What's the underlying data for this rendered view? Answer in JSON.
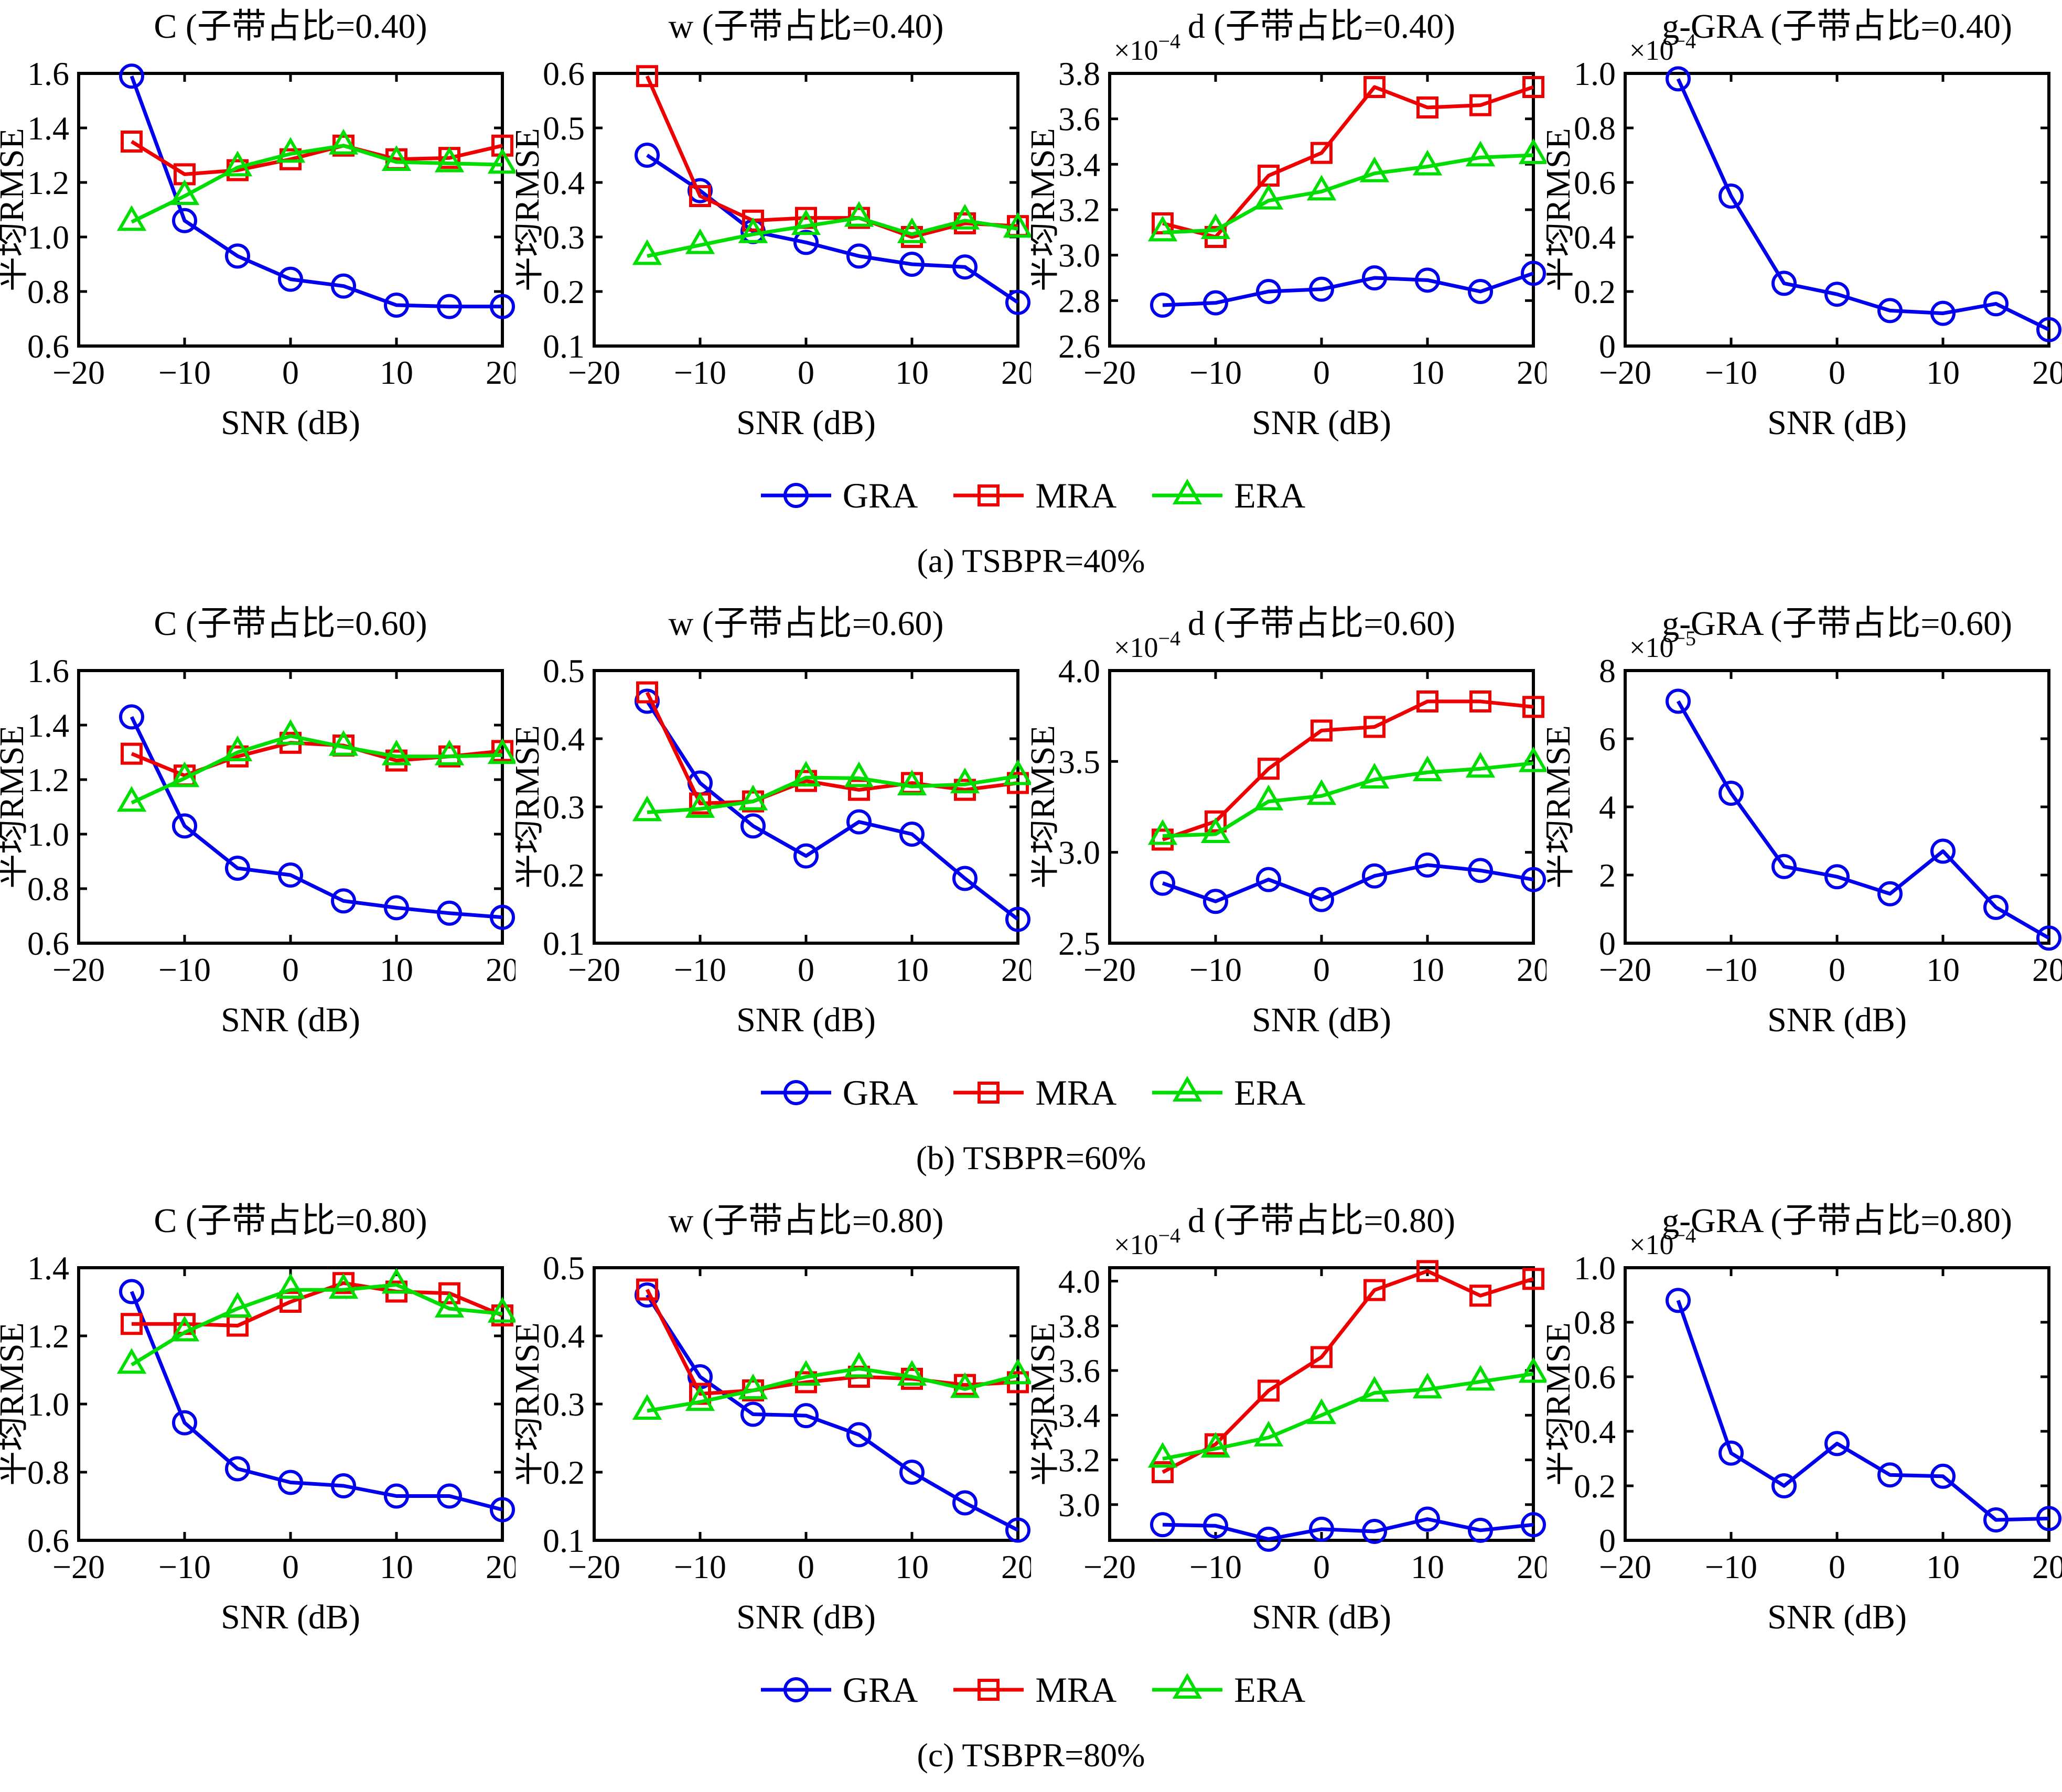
{
  "figure_title": "",
  "axis_common": {
    "xlabel": "SNR (dB)",
    "ylabel": "平均RMSE",
    "xlim": [
      -20,
      20
    ],
    "xticks": [
      -20,
      -10,
      0,
      10,
      20
    ],
    "xtick_labels": [
      "−20",
      "−10",
      "0",
      "10",
      "20"
    ],
    "x_values": [
      -15,
      -10,
      -5,
      0,
      5,
      10,
      15,
      20
    ]
  },
  "legend": {
    "items": [
      {
        "label": "GRA",
        "marker": "circle",
        "color": "#0000EE"
      },
      {
        "label": "MRA",
        "marker": "square",
        "color": "#EE0000"
      },
      {
        "label": "ERA",
        "marker": "triangle",
        "color": "#00DD00"
      }
    ]
  },
  "rows": [
    {
      "caption": "(a) TSBPR=40%",
      "charts": [
        0,
        1,
        2,
        3
      ]
    },
    {
      "caption": "(b) TSBPR=60%",
      "charts": [
        4,
        5,
        6,
        7
      ]
    },
    {
      "caption": "(c) TSBPR=80%",
      "charts": [
        8,
        9,
        10,
        11
      ]
    }
  ],
  "chart_data": [
    {
      "id": "c-040",
      "type": "line",
      "title": "C (子带占比=0.40)",
      "xlabel": "SNR (dB)",
      "ylabel": "平均RMSE",
      "grid": false,
      "x": [
        -15,
        -10,
        -5,
        0,
        5,
        10,
        15,
        20
      ],
      "xlim": [
        -20,
        20
      ],
      "ylim": [
        0.6,
        1.6
      ],
      "exponent": null,
      "yticks": [
        0.6,
        0.8,
        1.0,
        1.2,
        1.4,
        1.6
      ],
      "ytick_labels": [
        "0.6",
        "0.8",
        "1.0",
        "1.2",
        "1.4",
        "1.6"
      ],
      "series": [
        {
          "name": "GRA",
          "marker": "circle",
          "color": "#0000EE",
          "values": [
            1.59,
            1.06,
            0.93,
            0.845,
            0.82,
            0.75,
            0.745,
            0.745
          ]
        },
        {
          "name": "MRA",
          "marker": "square",
          "color": "#EE0000",
          "values": [
            1.35,
            1.23,
            1.245,
            1.285,
            1.335,
            1.285,
            1.29,
            1.335
          ]
        },
        {
          "name": "ERA",
          "marker": "triangle",
          "color": "#00DD00",
          "values": [
            1.055,
            1.15,
            1.255,
            1.305,
            1.335,
            1.275,
            1.27,
            1.265
          ]
        }
      ]
    },
    {
      "id": "w-040",
      "type": "line",
      "title": "w (子带占比=0.40)",
      "xlabel": "SNR (dB)",
      "ylabel": "平均RMSE",
      "grid": false,
      "x": [
        -15,
        -10,
        -5,
        0,
        5,
        10,
        15,
        20
      ],
      "xlim": [
        -20,
        20
      ],
      "ylim": [
        0.1,
        0.6
      ],
      "exponent": null,
      "yticks": [
        0.1,
        0.2,
        0.3,
        0.4,
        0.5,
        0.6
      ],
      "ytick_labels": [
        "0.1",
        "0.2",
        "0.3",
        "0.4",
        "0.5",
        "0.6"
      ],
      "series": [
        {
          "name": "GRA",
          "marker": "circle",
          "color": "#0000EE",
          "values": [
            0.45,
            0.385,
            0.31,
            0.29,
            0.265,
            0.25,
            0.245,
            0.18
          ]
        },
        {
          "name": "MRA",
          "marker": "square",
          "color": "#EE0000",
          "values": [
            0.595,
            0.375,
            0.33,
            0.335,
            0.335,
            0.3,
            0.325,
            0.32
          ]
        },
        {
          "name": "ERA",
          "marker": "triangle",
          "color": "#00DD00",
          "values": [
            0.265,
            0.285,
            0.305,
            0.32,
            0.335,
            0.305,
            0.33,
            0.315
          ]
        }
      ]
    },
    {
      "id": "d-040",
      "type": "line",
      "title": "d (子带占比=0.40)",
      "xlabel": "SNR (dB)",
      "ylabel": "平均RMSE",
      "grid": false,
      "x": [
        -15,
        -10,
        -5,
        0,
        5,
        10,
        15,
        20
      ],
      "xlim": [
        -20,
        20
      ],
      "ylim": [
        2.6,
        3.8
      ],
      "exponent": "−4",
      "yticks": [
        2.6,
        2.8,
        3.0,
        3.2,
        3.4,
        3.6,
        3.8
      ],
      "ytick_labels": [
        "2.6",
        "2.8",
        "3.0",
        "3.2",
        "3.4",
        "3.6",
        "3.8"
      ],
      "series": [
        {
          "name": "GRA",
          "marker": "circle",
          "color": "#0000EE",
          "values": [
            2.78,
            2.79,
            2.84,
            2.85,
            2.9,
            2.89,
            2.84,
            2.92
          ]
        },
        {
          "name": "MRA",
          "marker": "square",
          "color": "#EE0000",
          "values": [
            3.14,
            3.08,
            3.35,
            3.45,
            3.74,
            3.65,
            3.66,
            3.74
          ]
        },
        {
          "name": "ERA",
          "marker": "triangle",
          "color": "#00DD00",
          "values": [
            3.1,
            3.11,
            3.24,
            3.28,
            3.36,
            3.39,
            3.43,
            3.44
          ]
        }
      ]
    },
    {
      "id": "ggra-040",
      "type": "line",
      "title": "g-GRA (子带占比=0.40)",
      "xlabel": "SNR (dB)",
      "ylabel": "平均RMSE",
      "grid": false,
      "x": [
        -15,
        -10,
        -5,
        0,
        5,
        10,
        15,
        20
      ],
      "xlim": [
        -20,
        20
      ],
      "ylim": [
        0,
        1.0
      ],
      "exponent": "−4",
      "yticks": [
        0,
        0.2,
        0.4,
        0.6,
        0.8,
        1.0
      ],
      "ytick_labels": [
        "0",
        "0.2",
        "0.4",
        "0.6",
        "0.8",
        "1.0"
      ],
      "series": [
        {
          "name": "GRA",
          "marker": "circle",
          "color": "#0000EE",
          "values": [
            0.98,
            0.55,
            0.23,
            0.19,
            0.13,
            0.12,
            0.155,
            0.06
          ]
        }
      ]
    },
    {
      "id": "c-060",
      "type": "line",
      "title": "C (子带占比=0.60)",
      "xlabel": "SNR (dB)",
      "ylabel": "平均RMSE",
      "grid": false,
      "x": [
        -15,
        -10,
        -5,
        0,
        5,
        10,
        15,
        20
      ],
      "xlim": [
        -20,
        20
      ],
      "ylim": [
        0.6,
        1.6
      ],
      "exponent": null,
      "yticks": [
        0.6,
        0.8,
        1.0,
        1.2,
        1.4,
        1.6
      ],
      "ytick_labels": [
        "0.6",
        "0.8",
        "1.0",
        "1.2",
        "1.4",
        "1.6"
      ],
      "series": [
        {
          "name": "GRA",
          "marker": "circle",
          "color": "#0000EE",
          "values": [
            1.43,
            1.03,
            0.875,
            0.85,
            0.755,
            0.73,
            0.71,
            0.695
          ]
        },
        {
          "name": "MRA",
          "marker": "square",
          "color": "#EE0000",
          "values": [
            1.295,
            1.215,
            1.285,
            1.335,
            1.325,
            1.27,
            1.285,
            1.305
          ]
        },
        {
          "name": "ERA",
          "marker": "triangle",
          "color": "#00DD00",
          "values": [
            1.115,
            1.205,
            1.3,
            1.36,
            1.32,
            1.285,
            1.285,
            1.29
          ]
        }
      ]
    },
    {
      "id": "w-060",
      "type": "line",
      "title": "w (子带占比=0.60)",
      "xlabel": "SNR (dB)",
      "ylabel": "平均RMSE",
      "grid": false,
      "x": [
        -15,
        -10,
        -5,
        0,
        5,
        10,
        15,
        20
      ],
      "xlim": [
        -20,
        20
      ],
      "ylim": [
        0.1,
        0.5
      ],
      "exponent": null,
      "yticks": [
        0.1,
        0.2,
        0.3,
        0.4,
        0.5
      ],
      "ytick_labels": [
        "0.1",
        "0.2",
        "0.3",
        "0.4",
        "0.5"
      ],
      "series": [
        {
          "name": "GRA",
          "marker": "circle",
          "color": "#0000EE",
          "values": [
            0.455,
            0.335,
            0.272,
            0.228,
            0.278,
            0.26,
            0.195,
            0.135
          ]
        },
        {
          "name": "MRA",
          "marker": "square",
          "color": "#EE0000",
          "values": [
            0.468,
            0.305,
            0.308,
            0.338,
            0.325,
            0.335,
            0.325,
            0.335
          ]
        },
        {
          "name": "ERA",
          "marker": "triangle",
          "color": "#00DD00",
          "values": [
            0.292,
            0.297,
            0.308,
            0.343,
            0.342,
            0.33,
            0.333,
            0.345
          ]
        }
      ]
    },
    {
      "id": "d-060",
      "type": "line",
      "title": "d (子带占比=0.60)",
      "xlabel": "SNR (dB)",
      "ylabel": "平均RMSE",
      "grid": false,
      "x": [
        -15,
        -10,
        -5,
        0,
        5,
        10,
        15,
        20
      ],
      "xlim": [
        -20,
        20
      ],
      "ylim": [
        2.5,
        4.0
      ],
      "exponent": "−4",
      "yticks": [
        2.5,
        3.0,
        3.5,
        4.0
      ],
      "ytick_labels": [
        "2.5",
        "3.0",
        "3.5",
        "4.0"
      ],
      "series": [
        {
          "name": "GRA",
          "marker": "circle",
          "color": "#0000EE",
          "values": [
            2.83,
            2.73,
            2.85,
            2.74,
            2.87,
            2.93,
            2.9,
            2.85
          ]
        },
        {
          "name": "MRA",
          "marker": "square",
          "color": "#EE0000",
          "values": [
            3.07,
            3.17,
            3.46,
            3.67,
            3.69,
            3.83,
            3.83,
            3.8
          ]
        },
        {
          "name": "ERA",
          "marker": "triangle",
          "color": "#00DD00",
          "values": [
            3.09,
            3.1,
            3.28,
            3.31,
            3.4,
            3.44,
            3.46,
            3.49
          ]
        }
      ]
    },
    {
      "id": "ggra-060",
      "type": "line",
      "title": "g-GRA (子带占比=0.60)",
      "xlabel": "SNR (dB)",
      "ylabel": "平均RMSE",
      "grid": false,
      "x": [
        -15,
        -10,
        -5,
        0,
        5,
        10,
        15,
        20
      ],
      "xlim": [
        -20,
        20
      ],
      "ylim": [
        0,
        8
      ],
      "exponent": "−5",
      "yticks": [
        0,
        2,
        4,
        6,
        8
      ],
      "ytick_labels": [
        "0",
        "2",
        "4",
        "6",
        "8"
      ],
      "series": [
        {
          "name": "GRA",
          "marker": "circle",
          "color": "#0000EE",
          "values": [
            7.1,
            4.4,
            2.25,
            1.95,
            1.45,
            2.7,
            1.05,
            0.15
          ]
        }
      ]
    },
    {
      "id": "c-080",
      "type": "line",
      "title": "C (子带占比=0.80)",
      "xlabel": "SNR (dB)",
      "ylabel": "平均RMSE",
      "grid": false,
      "x": [
        -15,
        -10,
        -5,
        0,
        5,
        10,
        15,
        20
      ],
      "xlim": [
        -20,
        20
      ],
      "ylim": [
        0.6,
        1.4
      ],
      "exponent": null,
      "yticks": [
        0.6,
        0.8,
        1.0,
        1.2,
        1.4
      ],
      "ytick_labels": [
        "0.6",
        "0.8",
        "1.0",
        "1.2",
        "1.4"
      ],
      "series": [
        {
          "name": "GRA",
          "marker": "circle",
          "color": "#0000EE",
          "values": [
            1.33,
            0.945,
            0.81,
            0.77,
            0.76,
            0.73,
            0.73,
            0.69
          ]
        },
        {
          "name": "MRA",
          "marker": "square",
          "color": "#EE0000",
          "values": [
            1.235,
            1.235,
            1.23,
            1.3,
            1.355,
            1.33,
            1.325,
            1.26
          ]
        },
        {
          "name": "ERA",
          "marker": "triangle",
          "color": "#00DD00",
          "values": [
            1.115,
            1.21,
            1.28,
            1.335,
            1.335,
            1.35,
            1.28,
            1.265
          ]
        }
      ]
    },
    {
      "id": "w-080",
      "type": "line",
      "title": "w (子带占比=0.80)",
      "xlabel": "SNR (dB)",
      "ylabel": "平均RMSE",
      "grid": false,
      "x": [
        -15,
        -10,
        -5,
        0,
        5,
        10,
        15,
        20
      ],
      "xlim": [
        -20,
        20
      ],
      "ylim": [
        0.1,
        0.5
      ],
      "exponent": null,
      "yticks": [
        0.1,
        0.2,
        0.3,
        0.4,
        0.5
      ],
      "ytick_labels": [
        "0.1",
        "0.2",
        "0.3",
        "0.4",
        "0.5"
      ],
      "series": [
        {
          "name": "GRA",
          "marker": "circle",
          "color": "#0000EE",
          "values": [
            0.46,
            0.34,
            0.285,
            0.283,
            0.255,
            0.2,
            0.155,
            0.115
          ]
        },
        {
          "name": "MRA",
          "marker": "square",
          "color": "#EE0000",
          "values": [
            0.468,
            0.315,
            0.32,
            0.332,
            0.34,
            0.337,
            0.328,
            0.332
          ]
        },
        {
          "name": "ERA",
          "marker": "triangle",
          "color": "#00DD00",
          "values": [
            0.29,
            0.303,
            0.32,
            0.34,
            0.352,
            0.34,
            0.322,
            0.342
          ]
        }
      ]
    },
    {
      "id": "d-080",
      "type": "line",
      "title": "d (子带占比=0.80)",
      "xlabel": "SNR (dB)",
      "ylabel": "平均RMSE",
      "grid": false,
      "x": [
        -15,
        -10,
        -5,
        0,
        5,
        10,
        15,
        20
      ],
      "xlim": [
        -20,
        20
      ],
      "ylim": [
        2.84,
        4.06
      ],
      "exponent": "−4",
      "yticks": [
        3.0,
        3.2,
        3.4,
        3.6,
        3.8,
        4.0
      ],
      "ytick_labels": [
        "3.0",
        "3.2",
        "3.4",
        "3.6",
        "3.8",
        "4.0"
      ],
      "series": [
        {
          "name": "GRA",
          "marker": "circle",
          "color": "#0000EE",
          "values": [
            2.91,
            2.905,
            2.845,
            2.89,
            2.88,
            2.935,
            2.885,
            2.91
          ]
        },
        {
          "name": "MRA",
          "marker": "square",
          "color": "#EE0000",
          "values": [
            3.145,
            3.27,
            3.51,
            3.66,
            3.96,
            4.045,
            3.935,
            4.01
          ]
        },
        {
          "name": "ERA",
          "marker": "triangle",
          "color": "#00DD00",
          "values": [
            3.205,
            3.25,
            3.3,
            3.4,
            3.5,
            3.515,
            3.55,
            3.585
          ]
        }
      ]
    },
    {
      "id": "ggra-080",
      "type": "line",
      "title": "g-GRA (子带占比=0.80)",
      "xlabel": "SNR (dB)",
      "ylabel": "平均RMSE",
      "grid": false,
      "x": [
        -15,
        -10,
        -5,
        0,
        5,
        10,
        15,
        20
      ],
      "xlim": [
        -20,
        20
      ],
      "ylim": [
        0,
        1.0
      ],
      "exponent": "−4",
      "yticks": [
        0,
        0.2,
        0.4,
        0.6,
        0.8,
        1.0
      ],
      "ytick_labels": [
        "0",
        "0.2",
        "0.4",
        "0.6",
        "0.8",
        "1.0"
      ],
      "series": [
        {
          "name": "GRA",
          "marker": "circle",
          "color": "#0000EE",
          "values": [
            0.88,
            0.32,
            0.2,
            0.355,
            0.24,
            0.235,
            0.075,
            0.08
          ]
        }
      ]
    }
  ]
}
